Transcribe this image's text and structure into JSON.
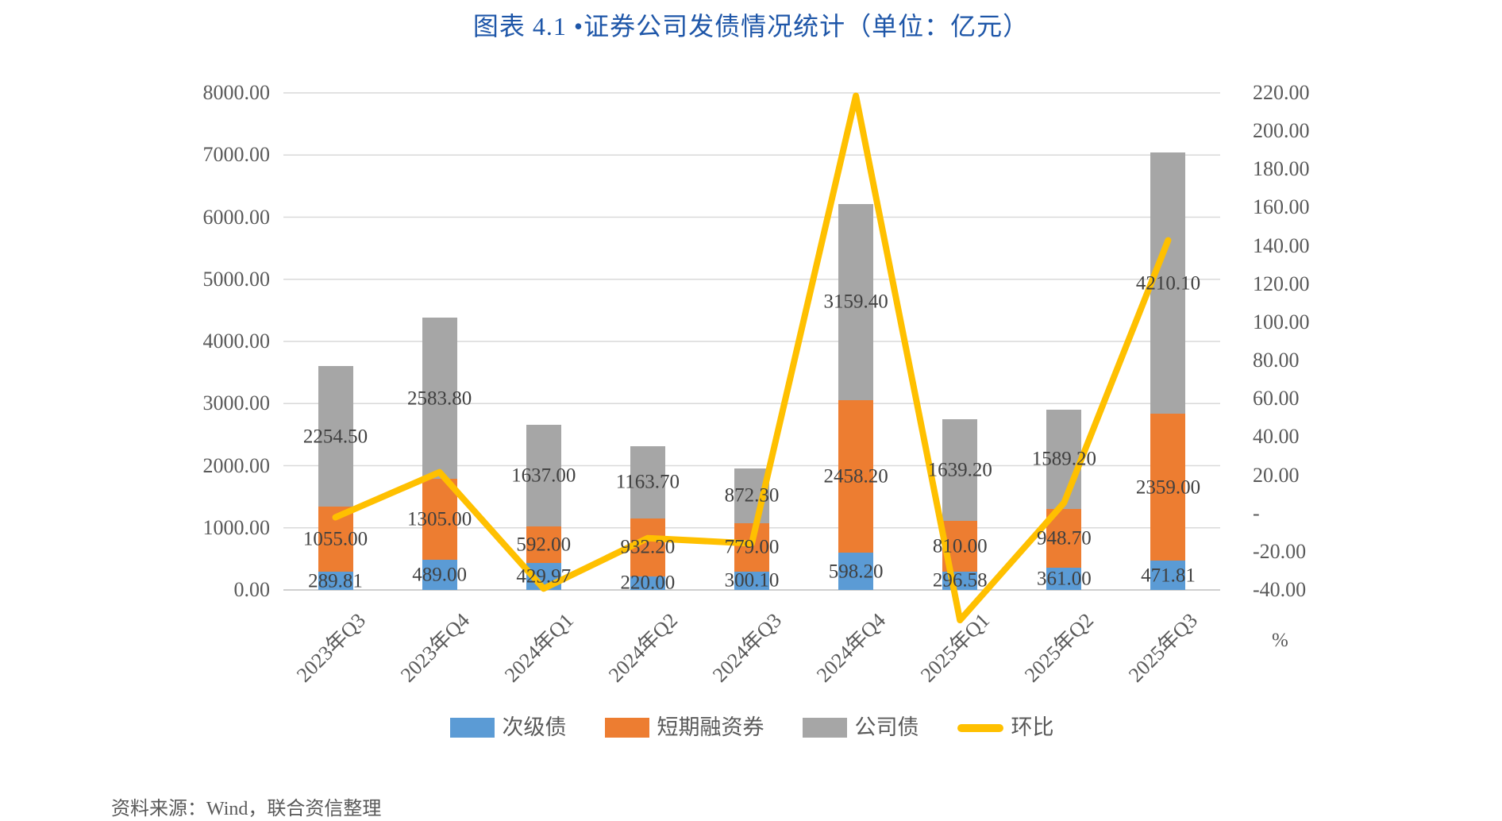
{
  "title": "图表 4.1 •证券公司发债情况统计（单位：亿元）",
  "source_note": "资料来源：Wind，联合资信整理",
  "colors": {
    "title": "#1E56A8",
    "axis_text": "#595959",
    "data_label": "#404040",
    "gridline": "#D9D9D9",
    "axis_line": "#BFBFBF",
    "subordinated_debt": "#5B9BD5",
    "short_term_bills": "#ED7D31",
    "corporate_bonds": "#A6A6A6",
    "qoq_line": "#FFC000"
  },
  "chart_data": {
    "type": "bar",
    "subtype": "stacked-columns-with-line",
    "title": "图表 4.1 •证券公司发债情况统计（单位：亿元）",
    "categories": [
      "2023年Q3",
      "2023年Q4",
      "2024年Q1",
      "2024年Q2",
      "2024年Q3",
      "2024年Q4",
      "2025年Q1",
      "2025年Q2",
      "2025年Q3"
    ],
    "series": [
      {
        "name": "次级债",
        "type": "bar",
        "stacked": true,
        "axis": "left",
        "color": "#5B9BD5",
        "values": [
          289.81,
          489.0,
          429.97,
          220.0,
          300.1,
          598.2,
          296.58,
          361.0,
          471.81
        ]
      },
      {
        "name": "短期融资券",
        "type": "bar",
        "stacked": true,
        "axis": "left",
        "color": "#ED7D31",
        "values": [
          1055.0,
          1305.0,
          592.0,
          932.2,
          779.0,
          2458.2,
          810.0,
          948.7,
          2359.0
        ]
      },
      {
        "name": "公司债",
        "type": "bar",
        "stacked": true,
        "axis": "left",
        "color": "#A6A6A6",
        "values": [
          2254.5,
          2583.8,
          1637.0,
          1163.7,
          872.3,
          3159.4,
          1639.2,
          1589.2,
          4210.1
        ]
      },
      {
        "name": "环比",
        "type": "line",
        "stacked": false,
        "axis": "right",
        "color": "#FFC000",
        "values": [
          -2.0,
          21.6,
          -39.3,
          -12.9,
          -15.7,
          218.5,
          -55.8,
          5.6,
          142.9
        ]
      }
    ],
    "left_axis": {
      "min": 0,
      "max": 8000,
      "step": 1000,
      "tick_labels": [
        "8000.00",
        "7000.00",
        "6000.00",
        "5000.00",
        "4000.00",
        "3000.00",
        "2000.00",
        "1000.00",
        "0.00"
      ]
    },
    "right_axis": {
      "min": -40,
      "max": 220,
      "step": 20,
      "unit": "%",
      "tick_labels": [
        "220.00",
        "200.00",
        "180.00",
        "160.00",
        "140.00",
        "120.00",
        "100.00",
        "80.00",
        "60.00",
        "40.00",
        "20.00",
        "-",
        "-20.00",
        "-40.00"
      ]
    },
    "grid": true,
    "legend_position": "bottom",
    "legend": [
      "次级债",
      "短期融资券",
      "公司债",
      "环比"
    ]
  }
}
